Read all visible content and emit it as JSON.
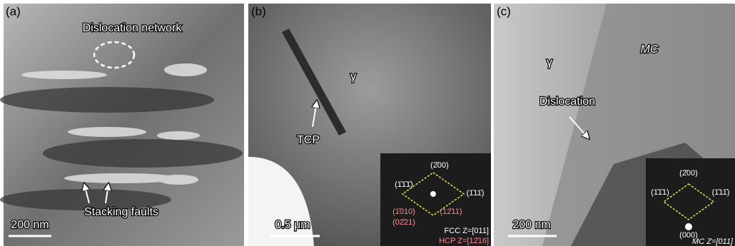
{
  "panels": [
    {
      "label": "(a)",
      "annotations": [
        "Dislocation network",
        "Stacking faults"
      ],
      "scale_bar": "200 nm"
    },
    {
      "label": "(b)",
      "annotations": [
        "γ",
        "TCP"
      ],
      "scale_bar": "0.5 μm",
      "diffraction": [
        "(2̄00)",
        "(1̄1̄1̄)",
        "(1̄11̄)",
        "(1̄010)",
        "(02̄21)",
        "(12̄11)",
        "FCC Z=[011]",
        "HCP Z=[12̄16]"
      ]
    },
    {
      "label": "(c)",
      "annotations": [
        "γ",
        "MC",
        "Dislocation"
      ],
      "scale_bar": "200 nm",
      "diffraction": [
        "(2̄00)",
        "(1̄1̄1)",
        "(1̄11̄)",
        "(000)",
        "MC Z=[011]"
      ]
    }
  ]
}
